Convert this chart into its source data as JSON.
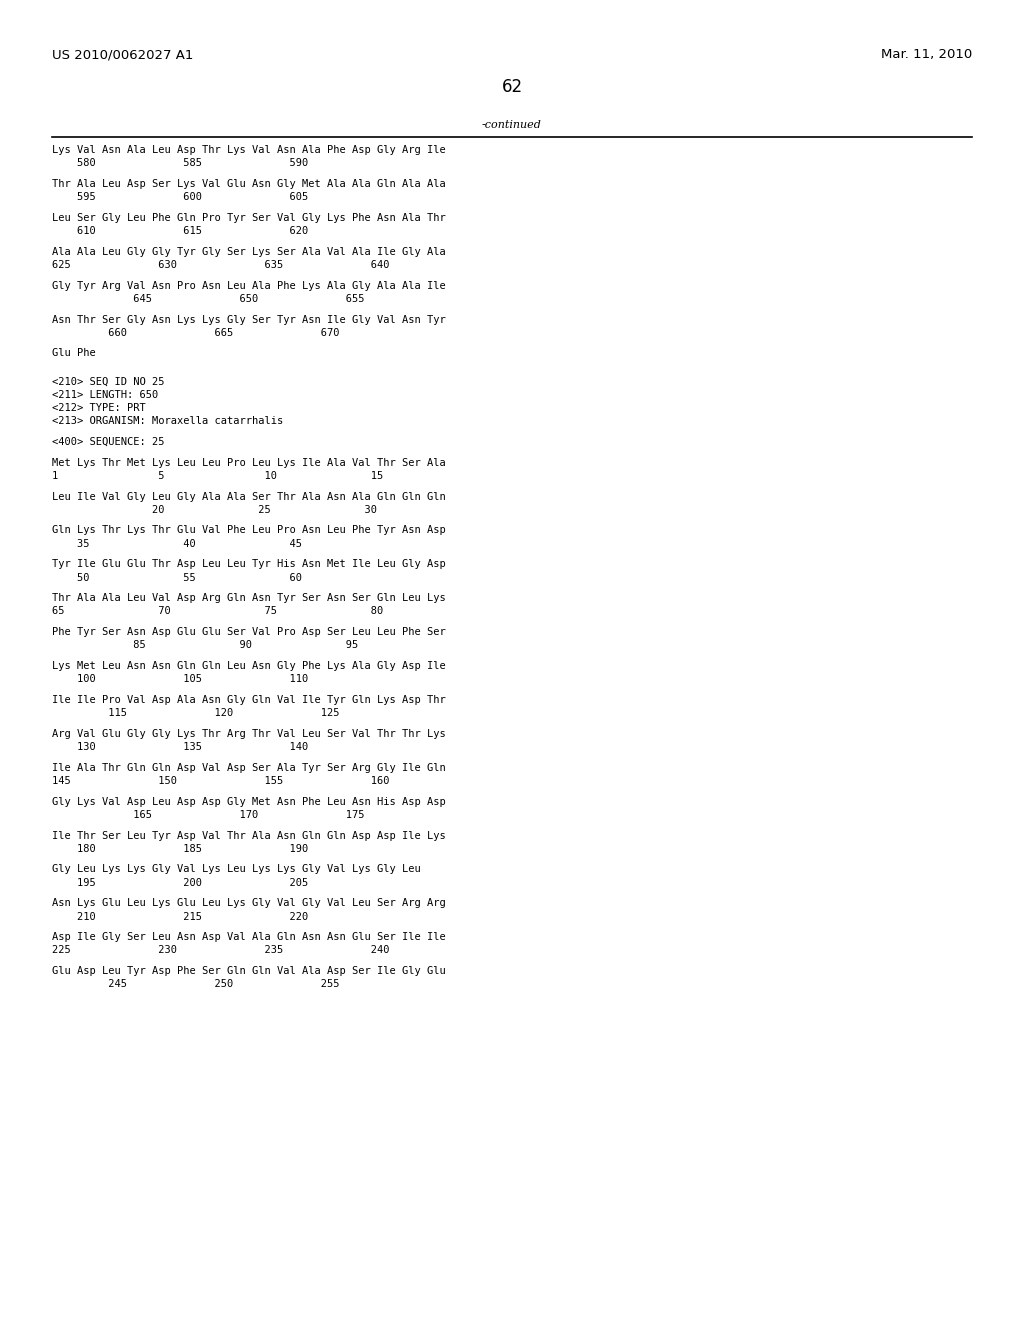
{
  "header_left": "US 2010/0062027 A1",
  "header_right": "Mar. 11, 2010",
  "page_number": "62",
  "continued_label": "-continued",
  "background_color": "#ffffff",
  "text_color": "#000000",
  "font_size": 7.5,
  "header_font_size": 9.5,
  "page_num_font_size": 12,
  "content_lines": [
    "Lys Val Asn Ala Leu Asp Thr Lys Val Asn Ala Phe Asp Gly Arg Ile",
    "    580              585              590",
    "",
    "Thr Ala Leu Asp Ser Lys Val Glu Asn Gly Met Ala Ala Gln Ala Ala",
    "    595              600              605",
    "",
    "Leu Ser Gly Leu Phe Gln Pro Tyr Ser Val Gly Lys Phe Asn Ala Thr",
    "    610              615              620",
    "",
    "Ala Ala Leu Gly Gly Tyr Gly Ser Lys Ser Ala Val Ala Ile Gly Ala",
    "625              630              635              640",
    "",
    "Gly Tyr Arg Val Asn Pro Asn Leu Ala Phe Lys Ala Gly Ala Ala Ile",
    "             645              650              655",
    "",
    "Asn Thr Ser Gly Asn Lys Lys Gly Ser Tyr Asn Ile Gly Val Asn Tyr",
    "         660              665              670",
    "",
    "Glu Phe",
    "",
    "",
    "<210> SEQ ID NO 25",
    "<211> LENGTH: 650",
    "<212> TYPE: PRT",
    "<213> ORGANISM: Moraxella catarrhalis",
    "",
    "<400> SEQUENCE: 25",
    "",
    "Met Lys Thr Met Lys Leu Leu Pro Leu Lys Ile Ala Val Thr Ser Ala",
    "1                5                10               15",
    "",
    "Leu Ile Val Gly Leu Gly Ala Ala Ser Thr Ala Asn Ala Gln Gln Gln",
    "                20               25               30",
    "",
    "Gln Lys Thr Lys Thr Glu Val Phe Leu Pro Asn Leu Phe Tyr Asn Asp",
    "    35               40               45",
    "",
    "Tyr Ile Glu Glu Thr Asp Leu Leu Tyr His Asn Met Ile Leu Gly Asp",
    "    50               55               60",
    "",
    "Thr Ala Ala Leu Val Asp Arg Gln Asn Tyr Ser Asn Ser Gln Leu Lys",
    "65               70               75               80",
    "",
    "Phe Tyr Ser Asn Asp Glu Glu Ser Val Pro Asp Ser Leu Leu Phe Ser",
    "             85               90               95",
    "",
    "Lys Met Leu Asn Asn Gln Gln Leu Asn Gly Phe Lys Ala Gly Asp Ile",
    "    100              105              110",
    "",
    "Ile Ile Pro Val Asp Ala Asn Gly Gln Val Ile Tyr Gln Lys Asp Thr",
    "         115              120              125",
    "",
    "Arg Val Glu Gly Gly Lys Thr Arg Thr Val Leu Ser Val Thr Thr Lys",
    "    130              135              140",
    "",
    "Ile Ala Thr Gln Gln Asp Val Asp Ser Ala Tyr Ser Arg Gly Ile Gln",
    "145              150              155              160",
    "",
    "Gly Lys Val Asp Leu Asp Asp Gly Met Asn Phe Leu Asn His Asp Asp",
    "             165              170              175",
    "",
    "Ile Thr Ser Leu Tyr Asp Val Thr Ala Asn Gln Gln Asp Asp Ile Lys",
    "    180              185              190",
    "",
    "Gly Leu Lys Lys Gly Val Lys Leu Lys Lys Gly Val Lys Gly Leu",
    "    195              200              205",
    "",
    "Asn Lys Glu Leu Lys Glu Leu Lys Gly Val Gly Val Leu Ser Arg Arg",
    "    210              215              220",
    "",
    "Asp Ile Gly Ser Leu Asn Asp Val Ala Gln Asn Asn Glu Ser Ile Ile",
    "225              230              235              240",
    "",
    "Glu Asp Leu Tyr Asp Phe Ser Gln Gln Val Ala Asp Ser Ile Gly Glu",
    "         245              250              255"
  ]
}
